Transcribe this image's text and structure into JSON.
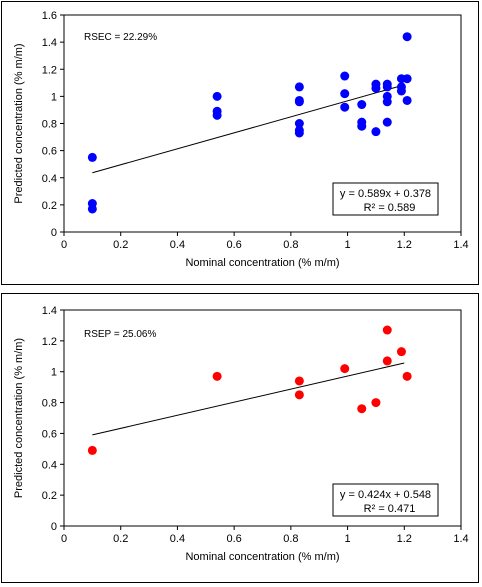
{
  "chart_data": [
    {
      "type": "scatter",
      "title": "",
      "xlabel": "Nominal concentration (% m/m)",
      "ylabel": "Predicted concentration (% m/m)",
      "xlim": [
        0,
        1.4
      ],
      "ylim": [
        0,
        1.6
      ],
      "xticks": [
        "0",
        "0.2",
        "0.4",
        "0.6",
        "0.8",
        "1",
        "1.2",
        "1.4"
      ],
      "yticks": [
        "0",
        "0.2",
        "0.4",
        "0.6",
        "0.8",
        "1",
        "1.2",
        "1.4",
        "1.6"
      ],
      "annotation": "RSEC = 22.29%",
      "equation": "y = 0.589x + 0.378",
      "r2": "R² = 0.589",
      "trendline": {
        "slope": 0.589,
        "intercept": 0.378,
        "x_range": [
          0.1,
          1.2
        ]
      },
      "color": "#0000ff",
      "points": [
        {
          "x": 0.1,
          "y": 0.55
        },
        {
          "x": 0.1,
          "y": 0.21
        },
        {
          "x": 0.1,
          "y": 0.17
        },
        {
          "x": 0.54,
          "y": 1.0
        },
        {
          "x": 0.54,
          "y": 0.89
        },
        {
          "x": 0.54,
          "y": 0.86
        },
        {
          "x": 0.83,
          "y": 1.07
        },
        {
          "x": 0.83,
          "y": 0.97
        },
        {
          "x": 0.83,
          "y": 0.96
        },
        {
          "x": 0.83,
          "y": 0.8
        },
        {
          "x": 0.83,
          "y": 0.75
        },
        {
          "x": 0.83,
          "y": 0.73
        },
        {
          "x": 0.99,
          "y": 1.15
        },
        {
          "x": 0.99,
          "y": 1.02
        },
        {
          "x": 0.99,
          "y": 0.92
        },
        {
          "x": 1.05,
          "y": 0.94
        },
        {
          "x": 1.05,
          "y": 0.81
        },
        {
          "x": 1.05,
          "y": 0.78
        },
        {
          "x": 1.1,
          "y": 1.09
        },
        {
          "x": 1.1,
          "y": 1.06
        },
        {
          "x": 1.1,
          "y": 0.74
        },
        {
          "x": 1.14,
          "y": 1.09
        },
        {
          "x": 1.14,
          "y": 1.07
        },
        {
          "x": 1.14,
          "y": 1.0
        },
        {
          "x": 1.14,
          "y": 0.96
        },
        {
          "x": 1.14,
          "y": 0.81
        },
        {
          "x": 1.19,
          "y": 1.13
        },
        {
          "x": 1.19,
          "y": 1.07
        },
        {
          "x": 1.19,
          "y": 1.04
        },
        {
          "x": 1.21,
          "y": 1.44
        },
        {
          "x": 1.21,
          "y": 1.13
        },
        {
          "x": 1.21,
          "y": 0.97
        }
      ]
    },
    {
      "type": "scatter",
      "title": "",
      "xlabel": "Nominal concentration (% m/m)",
      "ylabel": "Predicted concentration (% m/m)",
      "xlim": [
        0,
        1.4
      ],
      "ylim": [
        0,
        1.4
      ],
      "xticks": [
        "0",
        "0.2",
        "0.4",
        "0.6",
        "0.8",
        "1",
        "1.2",
        "1.4"
      ],
      "yticks": [
        "0",
        "0.2",
        "0.4",
        "0.6",
        "0.8",
        "1",
        "1.2",
        "1.4"
      ],
      "annotation": "RSEP = 25.06%",
      "equation": "y = 0.424x + 0.548",
      "r2": "R² = 0.471",
      "trendline": {
        "slope": 0.424,
        "intercept": 0.548,
        "x_range": [
          0.1,
          1.2
        ]
      },
      "color": "#ff0000",
      "points": [
        {
          "x": 0.1,
          "y": 0.49
        },
        {
          "x": 0.54,
          "y": 0.97
        },
        {
          "x": 0.83,
          "y": 0.94
        },
        {
          "x": 0.83,
          "y": 0.85
        },
        {
          "x": 0.99,
          "y": 1.02
        },
        {
          "x": 1.05,
          "y": 0.76
        },
        {
          "x": 1.1,
          "y": 0.8
        },
        {
          "x": 1.14,
          "y": 1.27
        },
        {
          "x": 1.14,
          "y": 1.07
        },
        {
          "x": 1.19,
          "y": 1.13
        },
        {
          "x": 1.21,
          "y": 0.97
        }
      ]
    }
  ]
}
